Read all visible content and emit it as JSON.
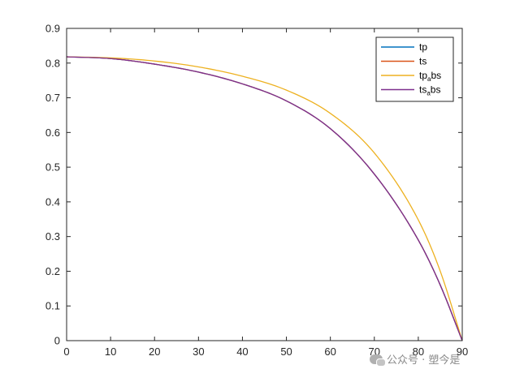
{
  "chart_data": {
    "type": "line",
    "xlim": [
      0,
      90
    ],
    "ylim": [
      0,
      0.9
    ],
    "x_ticks": [
      "0",
      "10",
      "20",
      "30",
      "40",
      "50",
      "60",
      "70",
      "80",
      "90"
    ],
    "y_ticks": [
      "0",
      "0.1",
      "0.2",
      "0.3",
      "0.4",
      "0.5",
      "0.6",
      "0.7",
      "0.8",
      "0.9"
    ],
    "grid": false,
    "legend_placement": "top-right",
    "x": [
      0,
      10,
      20,
      30,
      40,
      50,
      60,
      70,
      80,
      85,
      90
    ],
    "series": [
      {
        "name": "tp",
        "color": "#0072BD",
        "values": [
          0.818,
          0.813,
          0.797,
          0.774,
          0.74,
          0.691,
          0.611,
          0.48,
          0.29,
          0.16,
          0.0
        ]
      },
      {
        "name": "ts",
        "color": "#D95319",
        "values": [
          0.818,
          0.813,
          0.797,
          0.774,
          0.74,
          0.691,
          0.611,
          0.48,
          0.29,
          0.16,
          0.0
        ]
      },
      {
        "name": "tp_abs",
        "label_main": "tp",
        "label_sub": "a",
        "label_tail": "bs",
        "color": "#EDB120",
        "values": [
          0.818,
          0.815,
          0.806,
          0.789,
          0.762,
          0.722,
          0.655,
          0.541,
          0.348,
          0.2,
          0.0
        ]
      },
      {
        "name": "ts_abs",
        "label_main": "ts",
        "label_sub": "a",
        "label_tail": "bs",
        "color": "#7E2F8E",
        "values": [
          0.818,
          0.813,
          0.797,
          0.774,
          0.74,
          0.691,
          0.611,
          0.48,
          0.29,
          0.16,
          0.0
        ]
      }
    ]
  },
  "watermark": {
    "icon": "wechat-icon",
    "text": "公众号 · 塑今是"
  }
}
